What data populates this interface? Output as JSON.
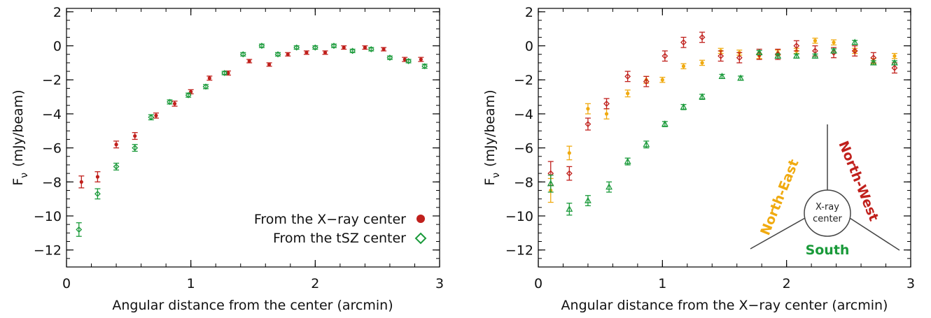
{
  "colors": {
    "red": "#c0201c",
    "green": "#1a9a3a",
    "orange": "#f0aa10",
    "axis": "#000000"
  },
  "chart_data": [
    {
      "type": "scatter",
      "xlabel": "Angular distance from the center (arcmin)",
      "ylabel_main": "F",
      "ylabel_sub": "ν",
      "ylabel_unit": "(mJy/beam)",
      "xlim": [
        0,
        3
      ],
      "ylim": [
        -13,
        2.2
      ],
      "xticks": [
        0,
        1,
        2,
        3
      ],
      "yticks": [
        2,
        0,
        -2,
        -4,
        -6,
        -8,
        -10,
        -12
      ],
      "xtick_labels": [
        "0",
        "1",
        "2",
        "3"
      ],
      "ytick_labels": [
        "2",
        "0",
        "−2",
        "−4",
        "−6",
        "−8",
        "−10",
        "−12"
      ],
      "legend_position": "bottom-right",
      "series": [
        {
          "name": "From the X−ray center",
          "marker": "filled-circle",
          "color": "#c0201c",
          "x": [
            0.12,
            0.25,
            0.4,
            0.55,
            0.72,
            0.87,
            1.0,
            1.15,
            1.3,
            1.47,
            1.63,
            1.78,
            1.93,
            2.08,
            2.23,
            2.4,
            2.55,
            2.72,
            2.85
          ],
          "y": [
            -8.0,
            -7.7,
            -5.8,
            -5.3,
            -4.1,
            -3.4,
            -2.7,
            -1.9,
            -1.6,
            -0.9,
            -1.1,
            -0.5,
            -0.4,
            -0.4,
            -0.1,
            -0.1,
            -0.2,
            -0.8,
            -0.8
          ],
          "err": [
            0.35,
            0.3,
            0.2,
            0.2,
            0.15,
            0.15,
            0.12,
            0.12,
            0.12,
            0.1,
            0.1,
            0.1,
            0.1,
            0.1,
            0.1,
            0.1,
            0.1,
            0.12,
            0.12
          ]
        },
        {
          "name": "From the tSZ center",
          "marker": "open-diamond",
          "color": "#1a9a3a",
          "x": [
            0.1,
            0.25,
            0.4,
            0.55,
            0.68,
            0.83,
            0.98,
            1.12,
            1.27,
            1.42,
            1.57,
            1.7,
            1.85,
            2.0,
            2.15,
            2.3,
            2.45,
            2.6,
            2.75,
            2.88
          ],
          "y": [
            -10.8,
            -8.7,
            -7.1,
            -6.0,
            -4.2,
            -3.3,
            -2.9,
            -2.4,
            -1.6,
            -0.5,
            0.0,
            -0.5,
            -0.1,
            -0.1,
            0.0,
            -0.3,
            -0.2,
            -0.7,
            -0.9,
            -1.2
          ],
          "err": [
            0.4,
            0.3,
            0.2,
            0.2,
            0.15,
            0.12,
            0.12,
            0.12,
            0.1,
            0.1,
            0.1,
            0.1,
            0.1,
            0.1,
            0.1,
            0.1,
            0.1,
            0.1,
            0.1,
            0.12
          ]
        }
      ]
    },
    {
      "type": "scatter",
      "xlabel": "Angular distance from the X−ray center (arcmin)",
      "ylabel_main": "F",
      "ylabel_sub": "ν",
      "ylabel_unit": "(mJy/beam)",
      "xlim": [
        0,
        3
      ],
      "ylim": [
        -13,
        2.2
      ],
      "xticks": [
        0,
        1,
        2,
        3
      ],
      "yticks": [
        2,
        0,
        -2,
        -4,
        -6,
        -8,
        -10,
        -12
      ],
      "xtick_labels": [
        "0",
        "1",
        "2",
        "3"
      ],
      "ytick_labels": [
        "2",
        "0",
        "−2",
        "−4",
        "−6",
        "−8",
        "−10",
        "−12"
      ],
      "series": [
        {
          "name": "North-East",
          "marker": "filled-circle",
          "color": "#f0aa10",
          "x": [
            0.1,
            0.25,
            0.4,
            0.55,
            0.72,
            0.87,
            1.0,
            1.17,
            1.32,
            1.47,
            1.62,
            1.78,
            1.93,
            2.08,
            2.23,
            2.38,
            2.55,
            2.7,
            2.87
          ],
          "y": [
            -8.5,
            -6.3,
            -3.7,
            -4.0,
            -2.8,
            -2.0,
            -2.0,
            -1.2,
            -1.0,
            -0.3,
            -0.4,
            -0.6,
            -0.4,
            -0.3,
            0.3,
            0.2,
            -0.3,
            -0.9,
            -0.6
          ],
          "err": [
            0.7,
            0.4,
            0.3,
            0.3,
            0.2,
            0.2,
            0.15,
            0.15,
            0.15,
            0.15,
            0.15,
            0.15,
            0.15,
            0.15,
            0.15,
            0.15,
            0.15,
            0.15,
            0.15
          ]
        },
        {
          "name": "North-West",
          "marker": "open-diamond",
          "color": "#c0201c",
          "x": [
            0.1,
            0.25,
            0.4,
            0.55,
            0.72,
            0.87,
            1.02,
            1.17,
            1.32,
            1.47,
            1.62,
            1.78,
            1.93,
            2.08,
            2.23,
            2.38,
            2.55,
            2.7,
            2.87
          ],
          "y": [
            -7.5,
            -7.5,
            -4.6,
            -3.4,
            -1.8,
            -2.1,
            -0.6,
            0.2,
            0.5,
            -0.6,
            -0.7,
            -0.5,
            -0.5,
            0.0,
            -0.3,
            -0.4,
            -0.3,
            -0.7,
            -1.3
          ],
          "err": [
            0.7,
            0.4,
            0.35,
            0.3,
            0.3,
            0.3,
            0.3,
            0.3,
            0.3,
            0.3,
            0.3,
            0.3,
            0.3,
            0.3,
            0.3,
            0.3,
            0.3,
            0.3,
            0.3
          ]
        },
        {
          "name": "South",
          "marker": "open-triangle",
          "color": "#1a9a3a",
          "x": [
            0.1,
            0.25,
            0.4,
            0.57,
            0.72,
            0.87,
            1.02,
            1.17,
            1.32,
            1.48,
            1.63,
            1.78,
            1.93,
            2.08,
            2.23,
            2.38,
            2.55,
            2.7,
            2.87
          ],
          "y": [
            -8.1,
            -9.6,
            -9.1,
            -8.3,
            -6.8,
            -5.8,
            -4.6,
            -3.6,
            -3.0,
            -1.8,
            -1.9,
            -0.4,
            -0.6,
            -0.6,
            -0.6,
            -0.3,
            0.2,
            -1.0,
            -1.0
          ],
          "err": [
            0.5,
            0.35,
            0.3,
            0.3,
            0.2,
            0.2,
            0.15,
            0.15,
            0.15,
            0.12,
            0.12,
            0.12,
            0.12,
            0.12,
            0.12,
            0.12,
            0.12,
            0.12,
            0.12
          ]
        }
      ],
      "inset": {
        "center_label_line1": "X-ray",
        "center_label_line2": "center",
        "label_ne": "North-East",
        "label_nw": "North-West",
        "label_s": "South"
      }
    }
  ],
  "legend": {
    "entry1": "From the X−ray center",
    "entry2": "From the tSZ center"
  }
}
